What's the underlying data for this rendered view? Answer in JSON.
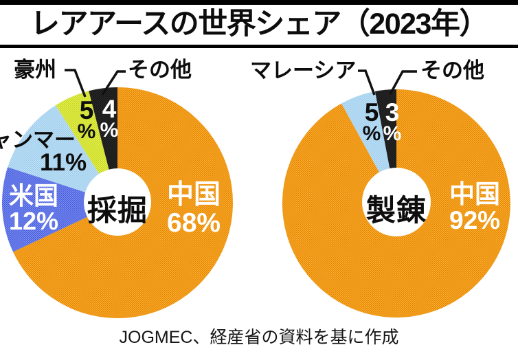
{
  "title": "レアアースの世界シェア（2023年）",
  "footer": "JOGMEC、経産省の資料を基に作成",
  "percent_sign": "%",
  "colors": {
    "orange": {
      "base": "#FFAF35",
      "dot": "#E08600"
    },
    "blue": {
      "base": "#8194F0",
      "dot": "#4257DC"
    },
    "lightblue": {
      "base": "#C6E2F6",
      "dot": "#98CCEC"
    },
    "yellowgreen": {
      "base": "#E6F060",
      "dot": "#C6D714"
    },
    "black": {
      "base": "#161616",
      "dot": "#2A2A2A"
    }
  },
  "chart_data": [
    {
      "type": "pie",
      "subtype": "donut",
      "title": "採掘",
      "start_angle_deg": 0,
      "direction": "clockwise",
      "segments": [
        {
          "label": "中国",
          "value": 68,
          "color": "orange"
        },
        {
          "label": "米国",
          "value": 12,
          "color": "blue"
        },
        {
          "label": "ミャンマー",
          "value": 11,
          "color": "lightblue"
        },
        {
          "label": "豪州",
          "value": 5,
          "color": "yellowgreen"
        },
        {
          "label": "その他",
          "value": 4,
          "color": "black"
        }
      ]
    },
    {
      "type": "pie",
      "subtype": "donut",
      "title": "製錬",
      "start_angle_deg": 0,
      "direction": "clockwise",
      "segments": [
        {
          "label": "中国",
          "value": 92,
          "color": "orange"
        },
        {
          "label": "マレーシア",
          "value": 5,
          "color": "lightblue"
        },
        {
          "label": "その他",
          "value": 3,
          "color": "black"
        }
      ]
    }
  ]
}
